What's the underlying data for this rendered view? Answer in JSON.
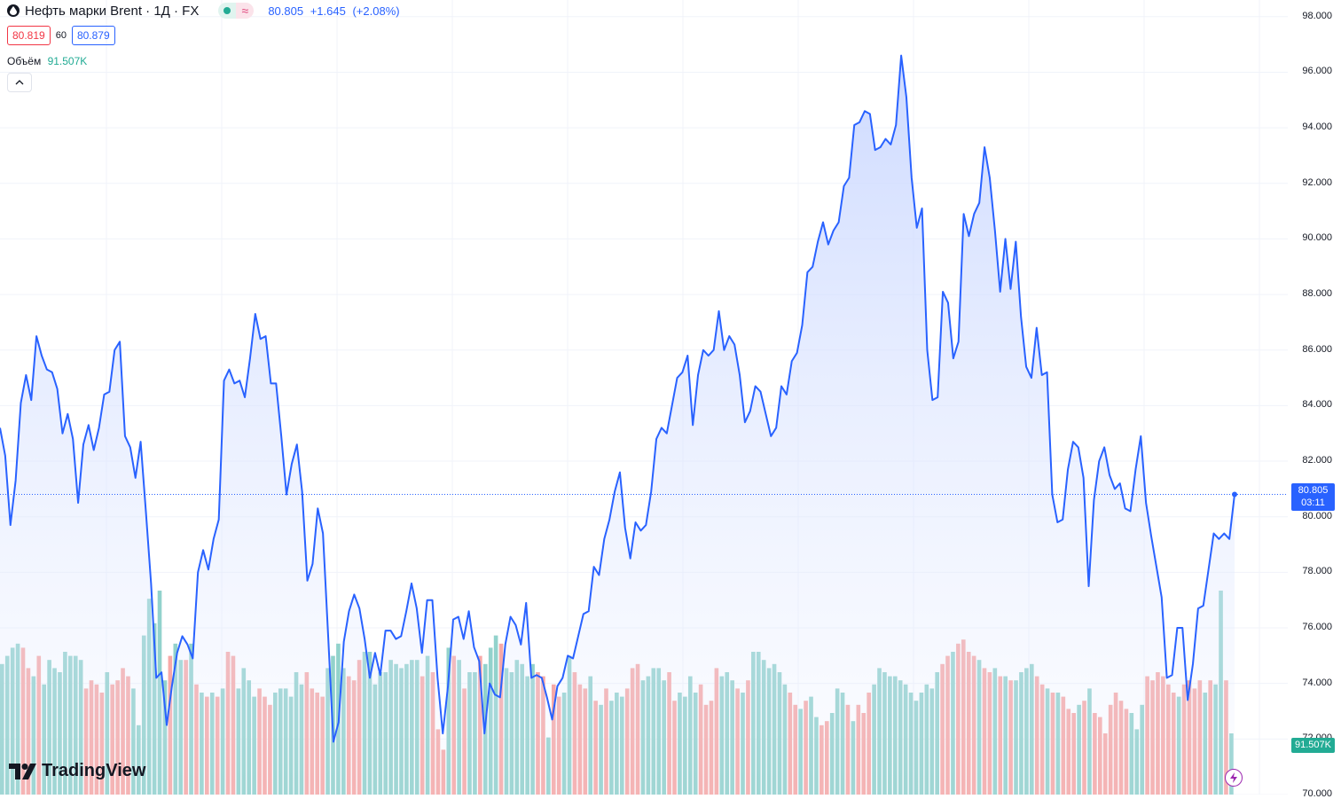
{
  "legend": {
    "title": "Нефть марки Brent · 1Д · FX",
    "status_approx": "≈",
    "last": "80.805",
    "change": "+1.645",
    "change_pct": "(+2.08%)"
  },
  "bid_ask": {
    "bid": "80.819",
    "spread": "60",
    "ask": "80.879"
  },
  "volume_legend": {
    "label": "Объём",
    "value": "91.507K"
  },
  "price_tag": {
    "price": "80.805",
    "countdown": "03:11"
  },
  "volume_tag": "91.507K",
  "logo_text": "TradingView",
  "colors": {
    "line": "#2962ff",
    "up_volume": "#22ab94",
    "down_volume": "#f23645",
    "area_top": "#c8d6ff"
  },
  "chart_data": {
    "type": "area",
    "x_axis": "daily bars (no date labels shown)",
    "ylim": [
      70,
      98.6
    ],
    "yticks": [
      "70.000",
      "72.000",
      "74.000",
      "76.000",
      "78.000",
      "80.000",
      "82.000",
      "84.000",
      "86.000",
      "88.000",
      "90.000",
      "92.000",
      "94.000",
      "96.000",
      "98.000"
    ],
    "grid": true,
    "series": [
      {
        "values": [
          83.2,
          82.2,
          79.7,
          81.3,
          84.1,
          85.1,
          84.2,
          86.5,
          85.8,
          85.3,
          85.2,
          84.6,
          83.0,
          83.7,
          82.8,
          80.5,
          82.6,
          83.3,
          82.4,
          83.2,
          84.4,
          84.5,
          86.0,
          86.3,
          82.9,
          82.5,
          81.4,
          82.7,
          80.2,
          77.6,
          74.2,
          74.4,
          72.5,
          73.9,
          75.1,
          75.7,
          75.4,
          74.9,
          78.0,
          78.8,
          78.1,
          79.2,
          79.9,
          84.9,
          85.3,
          84.8,
          84.9,
          84.3,
          85.7,
          87.3,
          86.4,
          86.5,
          84.8,
          84.8,
          82.9,
          80.8,
          81.9,
          82.6,
          80.9,
          77.7,
          78.3,
          80.3,
          79.4,
          75.7,
          71.9,
          72.6,
          75.5,
          76.6,
          77.2,
          76.7,
          75.6,
          74.2,
          75.1,
          74.3,
          75.9,
          75.9,
          75.6,
          75.7,
          76.6,
          77.6,
          76.7,
          75.1,
          77.0,
          77.0,
          74.2,
          72.2,
          73.9,
          76.3,
          76.4,
          75.6,
          76.6,
          75.3,
          74.8,
          72.2,
          74.0,
          73.6,
          73.5,
          75.4,
          76.4,
          76.1,
          75.4,
          76.9,
          74.2,
          74.3,
          74.2,
          73.5,
          72.7,
          73.9,
          74.2,
          75.0,
          74.9,
          75.7,
          76.5,
          76.6,
          78.2,
          77.9,
          79.2,
          79.9,
          80.9,
          81.6,
          79.6,
          78.5,
          79.8,
          79.5,
          79.7,
          80.9,
          82.8,
          83.2,
          83.0,
          84.0,
          85.0,
          85.2,
          85.8,
          83.3,
          85.1,
          86.0,
          85.8,
          86.0,
          87.4,
          86.0,
          86.5,
          86.2,
          85.1,
          83.4,
          83.8,
          84.7,
          84.5,
          83.7,
          82.9,
          83.2,
          84.7,
          84.4,
          85.6,
          85.9,
          86.9,
          88.8,
          89.0,
          89.9,
          90.6,
          89.8,
          90.3,
          90.6,
          91.9,
          92.2,
          94.1,
          94.2,
          94.6,
          94.5,
          93.2,
          93.3,
          93.6,
          93.4,
          94.1,
          96.6,
          95.1,
          92.2,
          90.4,
          91.1,
          86.0,
          84.2,
          84.3,
          88.1,
          87.7,
          85.7,
          86.3,
          90.9,
          90.1,
          90.9,
          91.3,
          93.3,
          92.2,
          90.3,
          88.1,
          90.0,
          88.2,
          89.9,
          87.2,
          85.4,
          85.0,
          86.8,
          85.1,
          85.2,
          80.8,
          79.8,
          79.9,
          81.7,
          82.7,
          82.5,
          81.4,
          77.5,
          80.6,
          82.0,
          82.5,
          81.5,
          81.0,
          81.2,
          80.3,
          80.2,
          81.7,
          82.9,
          80.5,
          79.3,
          78.2,
          77.1,
          74.2,
          74.3,
          76.0,
          76.0,
          73.4,
          74.7,
          76.7,
          76.8,
          78.1,
          79.4,
          79.2,
          79.4,
          79.2,
          80.805
        ]
      }
    ],
    "volume": {
      "current": 91507,
      "bars": [
        {
          "v": 0.64,
          "d": 1
        },
        {
          "v": 0.68,
          "d": 1
        },
        {
          "v": 0.72,
          "d": 1
        },
        {
          "v": 0.74,
          "d": 1
        },
        {
          "v": 0.72,
          "d": 0
        },
        {
          "v": 0.62,
          "d": 0
        },
        {
          "v": 0.58,
          "d": 1
        },
        {
          "v": 0.68,
          "d": 0
        },
        {
          "v": 0.54,
          "d": 1
        },
        {
          "v": 0.66,
          "d": 1
        },
        {
          "v": 0.62,
          "d": 1
        },
        {
          "v": 0.6,
          "d": 1
        },
        {
          "v": 0.7,
          "d": 1
        },
        {
          "v": 0.68,
          "d": 1
        },
        {
          "v": 0.68,
          "d": 1
        },
        {
          "v": 0.66,
          "d": 1
        },
        {
          "v": 0.52,
          "d": 0
        },
        {
          "v": 0.56,
          "d": 0
        },
        {
          "v": 0.54,
          "d": 0
        },
        {
          "v": 0.5,
          "d": 0
        },
        {
          "v": 0.6,
          "d": 1
        },
        {
          "v": 0.54,
          "d": 0
        },
        {
          "v": 0.56,
          "d": 0
        },
        {
          "v": 0.62,
          "d": 0
        },
        {
          "v": 0.58,
          "d": 0
        },
        {
          "v": 0.52,
          "d": 1
        },
        {
          "v": 0.34,
          "d": 1
        },
        {
          "v": 0.78,
          "d": 1
        },
        {
          "v": 0.96,
          "d": 1
        },
        {
          "v": 0.84,
          "d": 1
        },
        {
          "v": 1.0,
          "d": 1
        },
        {
          "v": 0.56,
          "d": 1
        },
        {
          "v": 0.68,
          "d": 0
        },
        {
          "v": 0.74,
          "d": 1
        },
        {
          "v": 0.66,
          "d": 1
        },
        {
          "v": 0.66,
          "d": 0
        },
        {
          "v": 0.74,
          "d": 1
        },
        {
          "v": 0.54,
          "d": 0
        },
        {
          "v": 0.5,
          "d": 1
        },
        {
          "v": 0.48,
          "d": 0
        },
        {
          "v": 0.5,
          "d": 1
        },
        {
          "v": 0.48,
          "d": 0
        },
        {
          "v": 0.52,
          "d": 1
        },
        {
          "v": 0.7,
          "d": 0
        },
        {
          "v": 0.68,
          "d": 0
        },
        {
          "v": 0.52,
          "d": 1
        },
        {
          "v": 0.62,
          "d": 1
        },
        {
          "v": 0.56,
          "d": 1
        },
        {
          "v": 0.48,
          "d": 1
        },
        {
          "v": 0.52,
          "d": 0
        },
        {
          "v": 0.48,
          "d": 0
        },
        {
          "v": 0.44,
          "d": 0
        },
        {
          "v": 0.5,
          "d": 1
        },
        {
          "v": 0.52,
          "d": 1
        },
        {
          "v": 0.52,
          "d": 1
        },
        {
          "v": 0.48,
          "d": 1
        },
        {
          "v": 0.6,
          "d": 1
        },
        {
          "v": 0.54,
          "d": 1
        },
        {
          "v": 0.6,
          "d": 0
        },
        {
          "v": 0.52,
          "d": 0
        },
        {
          "v": 0.5,
          "d": 0
        },
        {
          "v": 0.48,
          "d": 0
        },
        {
          "v": 0.62,
          "d": 1
        },
        {
          "v": 0.68,
          "d": 1
        },
        {
          "v": 0.74,
          "d": 1
        },
        {
          "v": 0.62,
          "d": 1
        },
        {
          "v": 0.58,
          "d": 0
        },
        {
          "v": 0.56,
          "d": 0
        },
        {
          "v": 0.66,
          "d": 0
        },
        {
          "v": 0.7,
          "d": 1
        },
        {
          "v": 0.7,
          "d": 1
        },
        {
          "v": 0.54,
          "d": 1
        },
        {
          "v": 0.6,
          "d": 1
        },
        {
          "v": 0.6,
          "d": 1
        },
        {
          "v": 0.66,
          "d": 1
        },
        {
          "v": 0.64,
          "d": 1
        },
        {
          "v": 0.62,
          "d": 1
        },
        {
          "v": 0.64,
          "d": 1
        },
        {
          "v": 0.66,
          "d": 1
        },
        {
          "v": 0.66,
          "d": 1
        },
        {
          "v": 0.58,
          "d": 0
        },
        {
          "v": 0.68,
          "d": 1
        },
        {
          "v": 0.6,
          "d": 0
        },
        {
          "v": 0.32,
          "d": 0
        },
        {
          "v": 0.22,
          "d": 0
        },
        {
          "v": 0.72,
          "d": 1
        },
        {
          "v": 0.68,
          "d": 0
        },
        {
          "v": 0.66,
          "d": 1
        },
        {
          "v": 0.52,
          "d": 0
        },
        {
          "v": 0.6,
          "d": 1
        },
        {
          "v": 0.6,
          "d": 1
        },
        {
          "v": 0.68,
          "d": 0
        },
        {
          "v": 0.64,
          "d": 1
        },
        {
          "v": 0.72,
          "d": 1
        },
        {
          "v": 0.78,
          "d": 1
        },
        {
          "v": 0.74,
          "d": 0
        },
        {
          "v": 0.62,
          "d": 1
        },
        {
          "v": 0.6,
          "d": 1
        },
        {
          "v": 0.66,
          "d": 1
        },
        {
          "v": 0.64,
          "d": 1
        },
        {
          "v": 0.58,
          "d": 1
        },
        {
          "v": 0.64,
          "d": 1
        },
        {
          "v": 0.6,
          "d": 0
        },
        {
          "v": 0.58,
          "d": 0
        },
        {
          "v": 0.28,
          "d": 1
        },
        {
          "v": 0.54,
          "d": 0
        },
        {
          "v": 0.48,
          "d": 0
        },
        {
          "v": 0.5,
          "d": 1
        },
        {
          "v": 0.68,
          "d": 1
        },
        {
          "v": 0.6,
          "d": 0
        },
        {
          "v": 0.54,
          "d": 0
        },
        {
          "v": 0.52,
          "d": 0
        },
        {
          "v": 0.58,
          "d": 1
        },
        {
          "v": 0.46,
          "d": 0
        },
        {
          "v": 0.44,
          "d": 1
        },
        {
          "v": 0.52,
          "d": 0
        },
        {
          "v": 0.46,
          "d": 1
        },
        {
          "v": 0.5,
          "d": 1
        },
        {
          "v": 0.48,
          "d": 1
        },
        {
          "v": 0.52,
          "d": 0
        },
        {
          "v": 0.62,
          "d": 0
        },
        {
          "v": 0.64,
          "d": 0
        },
        {
          "v": 0.56,
          "d": 1
        },
        {
          "v": 0.58,
          "d": 1
        },
        {
          "v": 0.62,
          "d": 1
        },
        {
          "v": 0.62,
          "d": 1
        },
        {
          "v": 0.56,
          "d": 1
        },
        {
          "v": 0.6,
          "d": 0
        },
        {
          "v": 0.46,
          "d": 0
        },
        {
          "v": 0.5,
          "d": 1
        },
        {
          "v": 0.48,
          "d": 1
        },
        {
          "v": 0.58,
          "d": 1
        },
        {
          "v": 0.5,
          "d": 1
        },
        {
          "v": 0.54,
          "d": 0
        },
        {
          "v": 0.44,
          "d": 0
        },
        {
          "v": 0.46,
          "d": 0
        },
        {
          "v": 0.62,
          "d": 0
        },
        {
          "v": 0.58,
          "d": 1
        },
        {
          "v": 0.6,
          "d": 1
        },
        {
          "v": 0.56,
          "d": 1
        },
        {
          "v": 0.52,
          "d": 0
        },
        {
          "v": 0.5,
          "d": 1
        },
        {
          "v": 0.56,
          "d": 0
        },
        {
          "v": 0.7,
          "d": 1
        },
        {
          "v": 0.7,
          "d": 1
        },
        {
          "v": 0.66,
          "d": 1
        },
        {
          "v": 0.62,
          "d": 1
        },
        {
          "v": 0.64,
          "d": 1
        },
        {
          "v": 0.6,
          "d": 1
        },
        {
          "v": 0.54,
          "d": 1
        },
        {
          "v": 0.5,
          "d": 0
        },
        {
          "v": 0.44,
          "d": 0
        },
        {
          "v": 0.42,
          "d": 1
        },
        {
          "v": 0.46,
          "d": 0
        },
        {
          "v": 0.48,
          "d": 1
        },
        {
          "v": 0.38,
          "d": 1
        },
        {
          "v": 0.34,
          "d": 0
        },
        {
          "v": 0.36,
          "d": 0
        },
        {
          "v": 0.4,
          "d": 1
        },
        {
          "v": 0.52,
          "d": 1
        },
        {
          "v": 0.5,
          "d": 1
        },
        {
          "v": 0.44,
          "d": 0
        },
        {
          "v": 0.36,
          "d": 1
        },
        {
          "v": 0.44,
          "d": 0
        },
        {
          "v": 0.4,
          "d": 0
        },
        {
          "v": 0.5,
          "d": 0
        },
        {
          "v": 0.54,
          "d": 1
        },
        {
          "v": 0.62,
          "d": 1
        },
        {
          "v": 0.6,
          "d": 1
        },
        {
          "v": 0.58,
          "d": 1
        },
        {
          "v": 0.58,
          "d": 1
        },
        {
          "v": 0.56,
          "d": 1
        },
        {
          "v": 0.54,
          "d": 1
        },
        {
          "v": 0.5,
          "d": 1
        },
        {
          "v": 0.46,
          "d": 1
        },
        {
          "v": 0.5,
          "d": 1
        },
        {
          "v": 0.54,
          "d": 1
        },
        {
          "v": 0.52,
          "d": 1
        },
        {
          "v": 0.6,
          "d": 1
        },
        {
          "v": 0.64,
          "d": 0
        },
        {
          "v": 0.68,
          "d": 0
        },
        {
          "v": 0.7,
          "d": 1
        },
        {
          "v": 0.74,
          "d": 0
        },
        {
          "v": 0.76,
          "d": 0
        },
        {
          "v": 0.7,
          "d": 0
        },
        {
          "v": 0.68,
          "d": 0
        },
        {
          "v": 0.66,
          "d": 1
        },
        {
          "v": 0.62,
          "d": 0
        },
        {
          "v": 0.6,
          "d": 0
        },
        {
          "v": 0.62,
          "d": 1
        },
        {
          "v": 0.58,
          "d": 0
        },
        {
          "v": 0.58,
          "d": 1
        },
        {
          "v": 0.56,
          "d": 0
        },
        {
          "v": 0.56,
          "d": 1
        },
        {
          "v": 0.6,
          "d": 1
        },
        {
          "v": 0.62,
          "d": 1
        },
        {
          "v": 0.64,
          "d": 1
        },
        {
          "v": 0.58,
          "d": 0
        },
        {
          "v": 0.54,
          "d": 0
        },
        {
          "v": 0.52,
          "d": 1
        },
        {
          "v": 0.5,
          "d": 0
        },
        {
          "v": 0.5,
          "d": 1
        },
        {
          "v": 0.48,
          "d": 0
        },
        {
          "v": 0.42,
          "d": 0
        },
        {
          "v": 0.4,
          "d": 0
        },
        {
          "v": 0.44,
          "d": 1
        },
        {
          "v": 0.46,
          "d": 0
        },
        {
          "v": 0.52,
          "d": 1
        },
        {
          "v": 0.4,
          "d": 0
        },
        {
          "v": 0.38,
          "d": 0
        },
        {
          "v": 0.3,
          "d": 0
        },
        {
          "v": 0.44,
          "d": 0
        },
        {
          "v": 0.5,
          "d": 0
        },
        {
          "v": 0.46,
          "d": 0
        },
        {
          "v": 0.42,
          "d": 0
        },
        {
          "v": 0.4,
          "d": 1
        },
        {
          "v": 0.32,
          "d": 1
        },
        {
          "v": 0.44,
          "d": 1
        },
        {
          "v": 0.58,
          "d": 0
        },
        {
          "v": 0.56,
          "d": 0
        },
        {
          "v": 0.6,
          "d": 0
        },
        {
          "v": 0.58,
          "d": 0
        },
        {
          "v": 0.54,
          "d": 0
        },
        {
          "v": 0.5,
          "d": 0
        },
        {
          "v": 0.48,
          "d": 1
        },
        {
          "v": 0.54,
          "d": 0
        },
        {
          "v": 0.56,
          "d": 0
        },
        {
          "v": 0.52,
          "d": 0
        },
        {
          "v": 0.56,
          "d": 0
        },
        {
          "v": 0.5,
          "d": 1
        },
        {
          "v": 0.56,
          "d": 0
        },
        {
          "v": 0.54,
          "d": 1
        },
        {
          "v": 1.0,
          "d": 1
        },
        {
          "v": 0.56,
          "d": 0
        },
        {
          "v": 0.3,
          "d": 1
        }
      ]
    }
  }
}
